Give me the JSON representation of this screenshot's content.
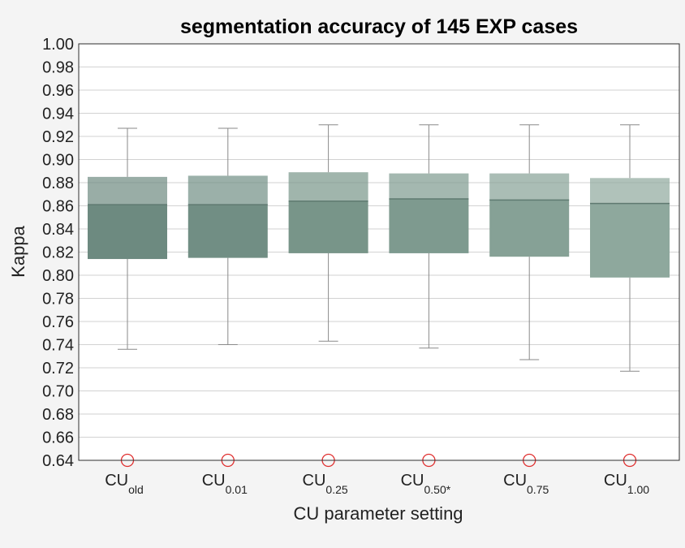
{
  "chart_data": {
    "type": "box",
    "title": "segmentation accuracy of 145 EXP cases",
    "xlabel": "CU parameter setting",
    "ylabel": "Kappa",
    "ylim": [
      0.64,
      1.0
    ],
    "yticks": [
      "0.64",
      "0.66",
      "0.68",
      "0.70",
      "0.72",
      "0.74",
      "0.76",
      "0.78",
      "0.80",
      "0.82",
      "0.84",
      "0.86",
      "0.88",
      "0.90",
      "0.92",
      "0.94",
      "0.96",
      "0.98",
      "1.00"
    ],
    "grid": true,
    "categories": [
      {
        "base": "CU",
        "sub": "old"
      },
      {
        "base": "CU",
        "sub": "0.01"
      },
      {
        "base": "CU",
        "sub": "0.25"
      },
      {
        "base": "CU",
        "sub": "0.50*"
      },
      {
        "base": "CU",
        "sub": "0.75"
      },
      {
        "base": "CU",
        "sub": "1.00"
      }
    ],
    "boxes": [
      {
        "whisker_low": 0.736,
        "q1": 0.814,
        "median": 0.861,
        "q3": 0.885,
        "whisker_high": 0.927,
        "outlier": 0.64,
        "color": "#6d8a80"
      },
      {
        "whisker_low": 0.74,
        "q1": 0.815,
        "median": 0.861,
        "q3": 0.886,
        "whisker_high": 0.927,
        "outlier": 0.64,
        "color": "#718e84"
      },
      {
        "whisker_low": 0.743,
        "q1": 0.819,
        "median": 0.864,
        "q3": 0.889,
        "whisker_high": 0.93,
        "outlier": 0.64,
        "color": "#789589"
      },
      {
        "whisker_low": 0.737,
        "q1": 0.819,
        "median": 0.866,
        "q3": 0.888,
        "whisker_high": 0.93,
        "outlier": 0.64,
        "color": "#7e9a8f"
      },
      {
        "whisker_low": 0.727,
        "q1": 0.816,
        "median": 0.865,
        "q3": 0.888,
        "whisker_high": 0.93,
        "outlier": 0.64,
        "color": "#86a196"
      },
      {
        "whisker_low": 0.717,
        "q1": 0.798,
        "median": 0.862,
        "q3": 0.884,
        "whisker_high": 0.93,
        "outlier": 0.64,
        "color": "#8ea89d"
      }
    ],
    "colors": {
      "whisker": "#8a8a8a",
      "grid": "#d2d2d2",
      "frame": "#2e2e2e",
      "outlier": "#e03030"
    }
  }
}
